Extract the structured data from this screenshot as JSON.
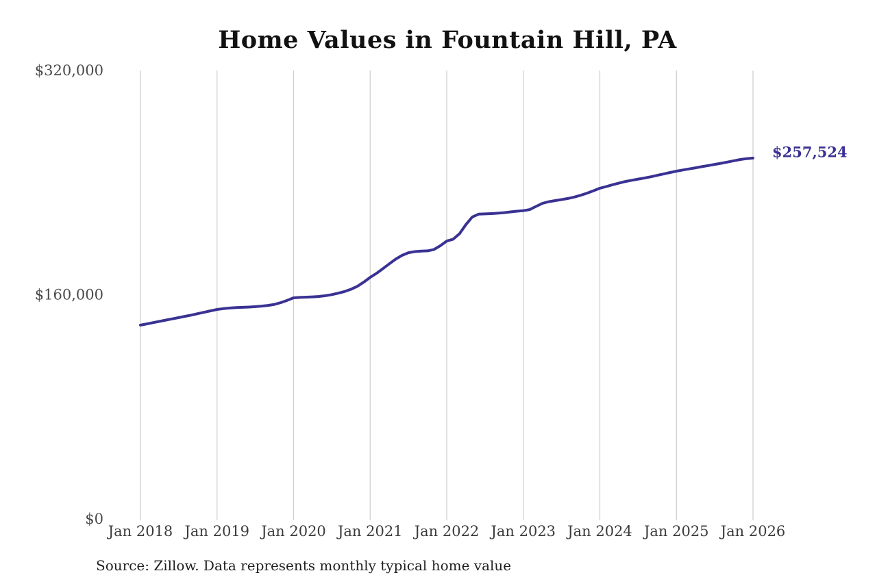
{
  "page": {
    "background_color": "#ffffff"
  },
  "chart_data": {
    "type": "line",
    "title": "Home Values in Fountain Hill, PA",
    "xlabel": "",
    "ylabel": "",
    "x_tick_labels": [
      "Jan 2018",
      "Jan 2019",
      "Jan 2020",
      "Jan 2021",
      "Jan 2022",
      "Jan 2023",
      "Jan 2024",
      "Jan 2025",
      "Jan 2026"
    ],
    "y_ticks": [
      {
        "label": "$0",
        "value": 0
      },
      {
        "label": "$160,000",
        "value": 160000
      },
      {
        "label": "$320,000",
        "value": 320000
      }
    ],
    "ylim": [
      0,
      320000
    ],
    "grid": "vertical-only",
    "legend_position": "none",
    "x_start": "Jan 2018",
    "x_end": "Jan 2026",
    "x_frequency": "monthly",
    "series": [
      {
        "name": "Typical home value",
        "values": [
          138300,
          139200,
          140100,
          141000,
          141900,
          142800,
          143700,
          144600,
          145500,
          146500,
          147500,
          148500,
          149500,
          150100,
          150500,
          150800,
          151000,
          151200,
          151500,
          151900,
          152400,
          153100,
          154400,
          156000,
          157800,
          158100,
          158300,
          158500,
          158800,
          159300,
          160100,
          161100,
          162300,
          163900,
          166000,
          169000,
          172400,
          175300,
          178600,
          182100,
          185400,
          188100,
          190000,
          190800,
          191100,
          191300,
          192300,
          195000,
          198300,
          199600,
          203500,
          210000,
          215500,
          217500,
          217700,
          217900,
          218200,
          218600,
          219100,
          219600,
          220000,
          220800,
          223000,
          225200,
          226400,
          227200,
          227900,
          228700,
          229700,
          231000,
          232500,
          234200,
          236000,
          237200,
          238500,
          239700,
          240800,
          241700,
          242500,
          243300,
          244200,
          245200,
          246200,
          247200,
          248200,
          249000,
          249800,
          250600,
          251400,
          252200,
          253000,
          253800,
          254700,
          255600,
          256500,
          257100,
          257524
        ]
      }
    ],
    "last_value": 257524,
    "end_label": "$257,524",
    "line_color": "#3a3293",
    "end_label_color": "#3a3293",
    "gridline_color": "#cccccc",
    "x_tick_color": "#3b3b3b",
    "y_tick_color": "#4a4a4a",
    "source_note": "Source: Zillow. Data represents monthly typical home value"
  }
}
